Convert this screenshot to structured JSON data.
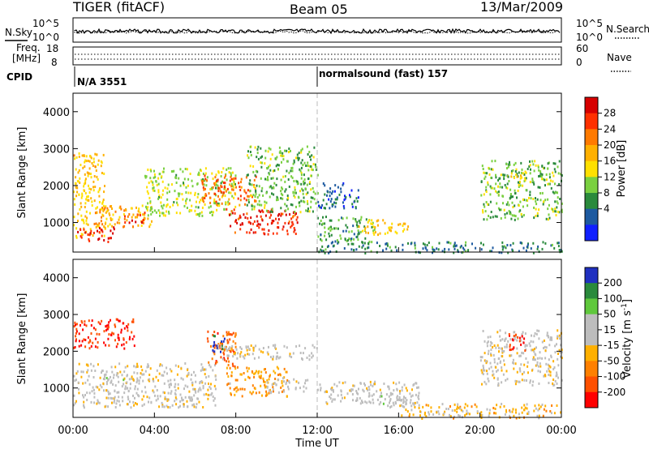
{
  "header": {
    "radar": "TIGER (fitACF)",
    "beam": "Beam 05",
    "date": "13/Mar/2009"
  },
  "noise_panel": {
    "left_label": "N.Sky",
    "right_label": "N.Search",
    "left_ticks": [
      "10^5",
      "10^0"
    ],
    "right_ticks": [
      "10^5",
      "10^0"
    ]
  },
  "freq_panel": {
    "left_label_1": "Freq.",
    "left_label_2": "[MHz]",
    "left_ticks": [
      "18",
      "8"
    ],
    "right_ticks": [
      "60",
      "0"
    ],
    "right_label": "Nave"
  },
  "cpid_panel": {
    "label": "CPID",
    "segments": [
      {
        "text": "N/A 3551",
        "start_hour": 0
      },
      {
        "text": "normalsound (fast) 157",
        "start_hour": 12
      }
    ]
  },
  "power_panel": {
    "ylabel": "Slant Range [km]",
    "colorbar_label": "Power [dB]",
    "colorbar_ticks": [
      "28",
      "24",
      "20",
      "16",
      "12",
      "8",
      "4"
    ],
    "colorbar_colors": [
      "#d70000",
      "#ff3000",
      "#ff7a00",
      "#ffb000",
      "#ffe000",
      "#7ad040",
      "#2a8a3c",
      "#1d5aa0",
      "#1020ff"
    ]
  },
  "velocity_panel": {
    "ylabel": "Slant Range [km]",
    "colorbar_label": "Velocity [m s^-1]",
    "colorbar_ticks": [
      "200",
      "100",
      "50",
      "15",
      "-15",
      "-50",
      "-100",
      "-200"
    ],
    "colorbar_colors": [
      "#2030c0",
      "#2a8a3c",
      "#5fc83c",
      "#bdbdbd",
      "#bdbdbd",
      "#ffb000",
      "#ff8000",
      "#ff5000",
      "#ff0000"
    ]
  },
  "xaxis": {
    "label": "Time UT",
    "ticks": [
      "00:00",
      "04:00",
      "08:00",
      "12:00",
      "16:00",
      "20:00",
      "00:00"
    ]
  },
  "chart_data": {
    "type": "heatmap",
    "title": "TIGER (fitACF)",
    "xlabel": "Time UT",
    "ylabel": "Slant Range [km]",
    "xlim": [
      0,
      24
    ],
    "ylim": [
      200,
      4500
    ],
    "yticks": [
      1000,
      2000,
      3000,
      4000
    ],
    "xticks_hours": [
      0,
      4,
      8,
      12,
      16,
      20,
      24
    ],
    "power_scale_db": [
      0,
      32
    ],
    "velocity_scale": [
      -250,
      250
    ],
    "power_features": [
      {
        "start_h": 0.0,
        "end_h": 1.6,
        "range_km": [
          600,
          2900
        ],
        "db": 18
      },
      {
        "start_h": 0.2,
        "end_h": 2.0,
        "range_km": [
          500,
          900
        ],
        "db": 28
      },
      {
        "start_h": 1.0,
        "end_h": 4.0,
        "range_km": [
          900,
          1500
        ],
        "db": 20
      },
      {
        "start_h": 2.5,
        "end_h": 3.5,
        "range_km": [
          1000,
          1300
        ],
        "db": 26
      },
      {
        "start_h": 3.5,
        "end_h": 8.0,
        "range_km": [
          1200,
          2500
        ],
        "db": 14
      },
      {
        "start_h": 6.3,
        "end_h": 9.0,
        "range_km": [
          1500,
          2300
        ],
        "db": 24
      },
      {
        "start_h": 7.5,
        "end_h": 11.0,
        "range_km": [
          700,
          1400
        ],
        "db": 28
      },
      {
        "start_h": 8.5,
        "end_h": 12.0,
        "range_km": [
          1300,
          3100
        ],
        "db": 12
      },
      {
        "start_h": 12.0,
        "end_h": 14.8,
        "range_km": [
          500,
          1200
        ],
        "db": 10
      },
      {
        "start_h": 12.0,
        "end_h": 14.0,
        "range_km": [
          1400,
          2100
        ],
        "db": 6
      },
      {
        "start_h": 14.0,
        "end_h": 16.5,
        "range_km": [
          700,
          1100
        ],
        "db": 18
      },
      {
        "start_h": 12.0,
        "end_h": 24.0,
        "range_km": [
          200,
          500
        ],
        "db": 8
      },
      {
        "start_h": 20.0,
        "end_h": 24.0,
        "range_km": [
          1100,
          2700
        ],
        "db": 12
      },
      {
        "start_h": 21.4,
        "end_h": 22.2,
        "range_km": [
          2000,
          2400
        ],
        "db": 18
      }
    ],
    "velocity_features": [
      {
        "start_h": 0.0,
        "end_h": 3.0,
        "range_km": [
          2100,
          2900
        ],
        "velocity": -200
      },
      {
        "start_h": 0.0,
        "end_h": 7.0,
        "range_km": [
          500,
          1700
        ],
        "velocity": 0
      },
      {
        "start_h": 1.5,
        "end_h": 2.8,
        "range_km": [
          1100,
          1400
        ],
        "velocity": 60
      },
      {
        "start_h": 6.5,
        "end_h": 8.0,
        "range_km": [
          1600,
          2600
        ],
        "velocity": -150
      },
      {
        "start_h": 6.8,
        "end_h": 7.5,
        "range_km": [
          2000,
          2500
        ],
        "velocity": 200
      },
      {
        "start_h": 7.5,
        "end_h": 10.5,
        "range_km": [
          800,
          1600
        ],
        "velocity": -80
      },
      {
        "start_h": 7.0,
        "end_h": 12.0,
        "range_km": [
          1800,
          2200
        ],
        "velocity": 0
      },
      {
        "start_h": 9.5,
        "end_h": 11.5,
        "range_km": [
          900,
          1300
        ],
        "velocity": 0
      },
      {
        "start_h": 12.0,
        "end_h": 17.0,
        "range_km": [
          600,
          1200
        ],
        "velocity": 10
      },
      {
        "start_h": 15.0,
        "end_h": 17.0,
        "range_km": [
          500,
          900
        ],
        "velocity": 40
      },
      {
        "start_h": 16.0,
        "end_h": 24.0,
        "range_km": [
          200,
          600
        ],
        "velocity": -50
      },
      {
        "start_h": 20.0,
        "end_h": 24.0,
        "range_km": [
          1100,
          2600
        ],
        "velocity": 0
      },
      {
        "start_h": 21.3,
        "end_h": 22.2,
        "range_km": [
          2000,
          2500
        ],
        "velocity": -200
      }
    ]
  }
}
